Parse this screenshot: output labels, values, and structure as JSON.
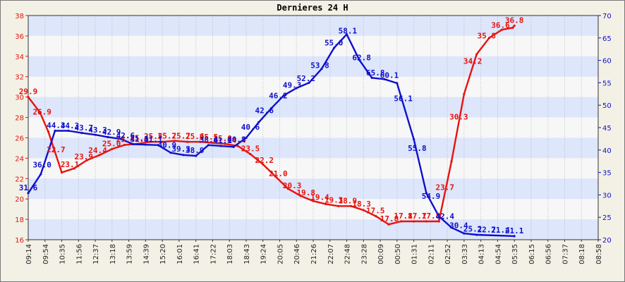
{
  "chart_data": {
    "type": "line",
    "title": "Dernieres 24 H",
    "x": [
      "09:14",
      "09:54",
      "10:35",
      "11:56",
      "12:37",
      "13:18",
      "13:59",
      "14:39",
      "15:20",
      "16:01",
      "16:41",
      "17:22",
      "18:03",
      "18:43",
      "19:24",
      "20:05",
      "20:46",
      "21:26",
      "22:07",
      "22:48",
      "23:28",
      "00:09",
      "00:50",
      "01:31",
      "02:11",
      "02:52",
      "03:33",
      "04:13",
      "04:54",
      "05:35",
      "06:15",
      "06:56",
      "07:37",
      "08:18",
      "08:58"
    ],
    "ylim_left": [
      16,
      38
    ],
    "yticks_left": [
      16,
      18,
      20,
      22,
      24,
      26,
      28,
      30,
      32,
      34,
      36,
      38
    ],
    "ylim_right": [
      20,
      70
    ],
    "yticks_right": [
      20,
      25,
      30,
      35,
      40,
      45,
      50,
      55,
      60,
      65,
      70
    ],
    "grid": true,
    "series": [
      {
        "axis": "left",
        "color": "#e8120c",
        "labels": [
          "29.9",
          "26.9",
          "22.7",
          "23.1",
          "23.9",
          "24.4",
          "25.0",
          "25.3",
          "25.4",
          "25.5",
          "25.7",
          "25.7",
          "25.6",
          "25.5",
          "25.0",
          "24.4",
          "23.5",
          "22.2",
          "21.0",
          "20.3",
          "19.8",
          "19.4",
          "19.3",
          "18.9",
          "18.3",
          "17.5",
          "17.8",
          "17.8",
          "17.7",
          "17.8",
          "23.7",
          "30.3",
          "34.2",
          "35.8",
          "36.6",
          "36.8"
        ],
        "points": [
          [
            0,
            30.0
          ],
          [
            0.7,
            28.5
          ],
          [
            1.2,
            26.6
          ],
          [
            2.0,
            22.6
          ],
          [
            2.75,
            23.0
          ],
          [
            3.5,
            23.8
          ],
          [
            4.25,
            24.3
          ],
          [
            5.0,
            24.9
          ],
          [
            5.75,
            25.3
          ],
          [
            6.5,
            25.4
          ],
          [
            7.25,
            25.6
          ],
          [
            8.0,
            25.6
          ],
          [
            8.75,
            25.7
          ],
          [
            9.5,
            25.6
          ],
          [
            10.25,
            25.6
          ],
          [
            11.0,
            25.5
          ],
          [
            11.75,
            25.4
          ],
          [
            12.5,
            25.2
          ],
          [
            13.25,
            24.4
          ],
          [
            14.0,
            23.4
          ],
          [
            14.75,
            22.2
          ],
          [
            15.5,
            21.0
          ],
          [
            16.25,
            20.3
          ],
          [
            17.0,
            19.8
          ],
          [
            17.75,
            19.5
          ],
          [
            18.5,
            19.3
          ],
          [
            19.25,
            19.3
          ],
          [
            20.0,
            18.9
          ],
          [
            20.75,
            18.3
          ],
          [
            21.5,
            17.5
          ],
          [
            22.25,
            17.8
          ],
          [
            23.0,
            17.8
          ],
          [
            23.75,
            17.8
          ],
          [
            24.5,
            17.8
          ],
          [
            25.25,
            23.7
          ],
          [
            26.0,
            30.3
          ],
          [
            26.75,
            34.2
          ],
          [
            27.5,
            35.8
          ],
          [
            28.25,
            36.6
          ],
          [
            28.9,
            36.8
          ],
          [
            29.0,
            37.0
          ]
        ]
      },
      {
        "axis": "right",
        "color": "#1010cc",
        "labels": [
          "31.6",
          "36.0",
          "44.3",
          "44.3",
          "43.7",
          "43.3",
          "42.9",
          "42.6",
          "41.3",
          "41.1",
          "40.9",
          "39.3",
          "38.9",
          "38.6",
          "41.1",
          "40.8",
          "40.6",
          "42.6",
          "46.2",
          "49.3",
          "52.2",
          "53.8",
          "55.0",
          "58.1",
          "62.8",
          "65.8",
          "60.1",
          "56.1",
          "55.8",
          "54.9",
          "42.4",
          "30.4",
          "25.2",
          "22.7",
          "21.4",
          "21.1"
        ],
        "points": [
          [
            0,
            30.4
          ],
          [
            0.75,
            34.6
          ],
          [
            1.6,
            44.3
          ],
          [
            2.4,
            44.3
          ],
          [
            3.2,
            43.8
          ],
          [
            4.0,
            43.4
          ],
          [
            4.75,
            42.9
          ],
          [
            5.5,
            42.5
          ],
          [
            6.25,
            41.3
          ],
          [
            7.0,
            41.2
          ],
          [
            7.75,
            41.1
          ],
          [
            8.5,
            39.4
          ],
          [
            9.25,
            38.9
          ],
          [
            10.0,
            38.7
          ],
          [
            10.75,
            41.1
          ],
          [
            11.5,
            40.9
          ],
          [
            12.25,
            40.7
          ],
          [
            13.0,
            42.7
          ],
          [
            13.75,
            46.2
          ],
          [
            14.5,
            49.3
          ],
          [
            15.25,
            52.2
          ],
          [
            16.0,
            53.8
          ],
          [
            16.75,
            55.0
          ],
          [
            17.5,
            58.1
          ],
          [
            18.25,
            62.8
          ],
          [
            19.0,
            65.8
          ],
          [
            19.75,
            60.1
          ],
          [
            20.5,
            56.1
          ],
          [
            21.25,
            55.8
          ],
          [
            22.0,
            54.9
          ],
          [
            23.0,
            42.4
          ],
          [
            23.75,
            30.4
          ],
          [
            24.5,
            25.2
          ],
          [
            25.25,
            22.7
          ],
          [
            26.0,
            21.4
          ],
          [
            26.75,
            21.1
          ],
          [
            29.0,
            20.8
          ]
        ]
      }
    ]
  }
}
